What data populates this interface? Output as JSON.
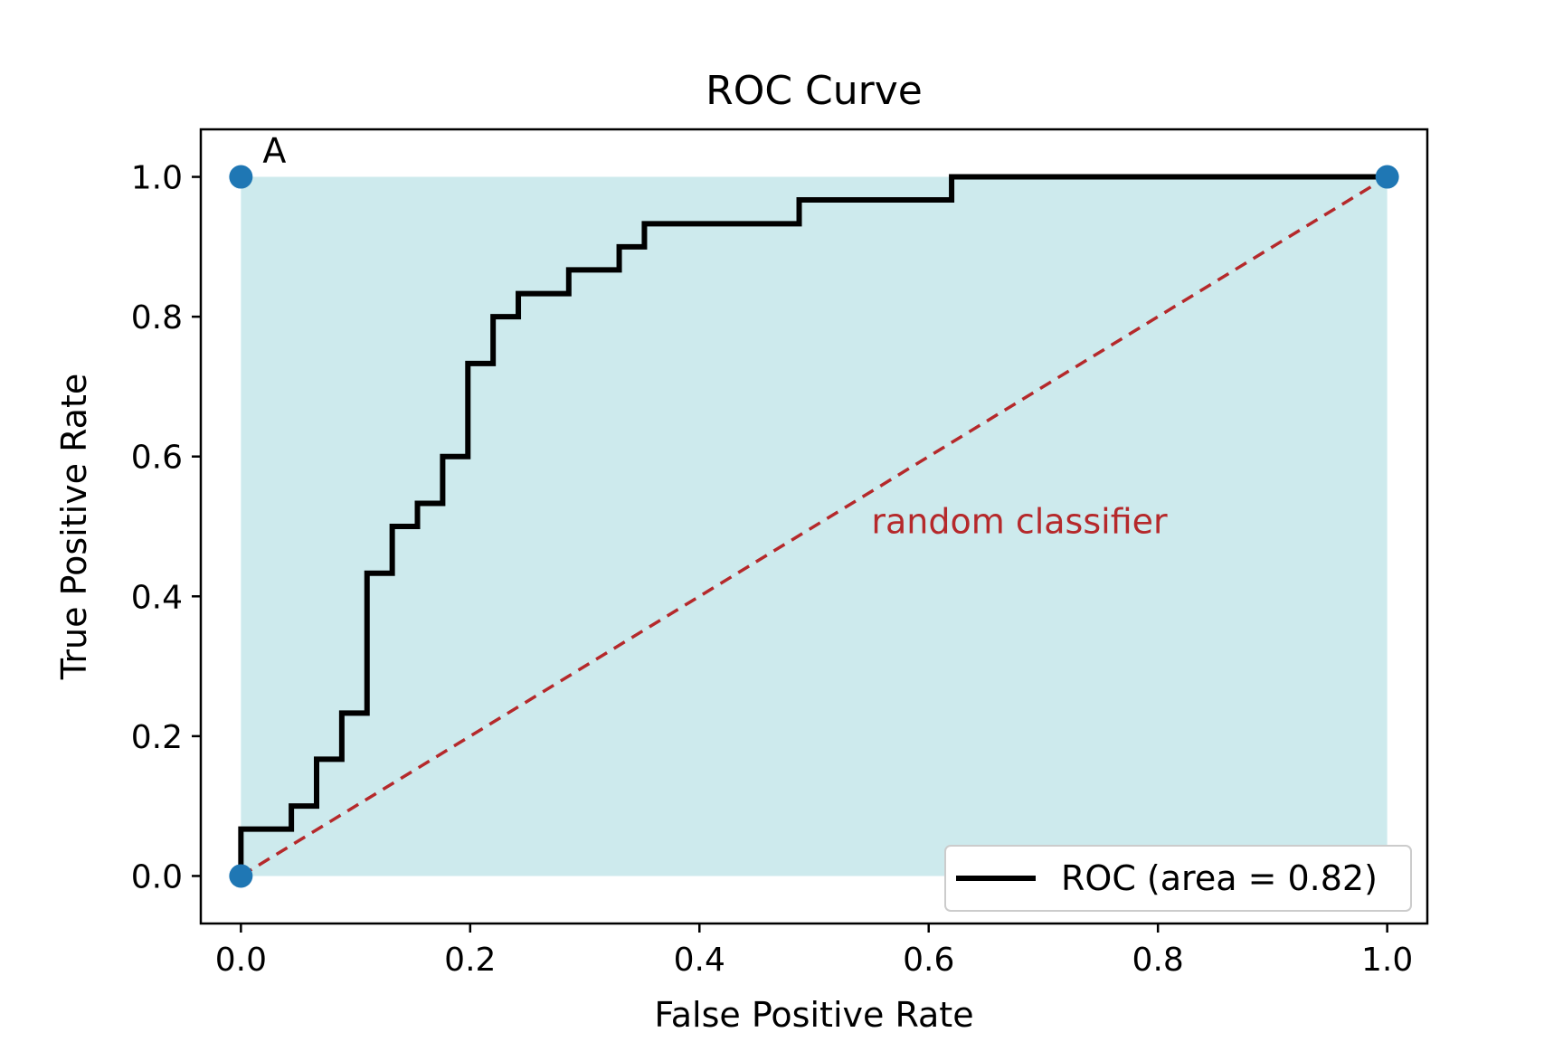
{
  "chart_data": {
    "type": "line",
    "title": "ROC Curve",
    "xlabel": "False Positive Rate",
    "ylabel": "True Positive Rate",
    "xlim": [
      -0.035,
      1.035
    ],
    "ylim": [
      -0.068,
      1.068
    ],
    "grid": false,
    "legend_position": "lower-right",
    "xticks": [
      0.0,
      0.2,
      0.4,
      0.6,
      0.8,
      1.0
    ],
    "yticks": [
      0.0,
      0.2,
      0.4,
      0.6,
      0.8,
      1.0
    ],
    "xtick_labels": [
      "0.0",
      "0.2",
      "0.4",
      "0.6",
      "0.8",
      "1.0"
    ],
    "ytick_labels": [
      "0.0",
      "0.2",
      "0.4",
      "0.6",
      "0.8",
      "1.0"
    ],
    "series": [
      {
        "name": "ROC (area = 0.82)",
        "color": "#000000",
        "x": [
          0.0,
          0.0,
          0.044,
          0.044,
          0.066,
          0.066,
          0.088,
          0.088,
          0.11,
          0.11,
          0.132,
          0.132,
          0.154,
          0.154,
          0.176,
          0.176,
          0.198,
          0.198,
          0.22,
          0.22,
          0.242,
          0.242,
          0.286,
          0.286,
          0.33,
          0.33,
          0.352,
          0.352,
          0.487,
          0.487,
          0.62,
          0.62,
          1.0
        ],
        "y": [
          0.0,
          0.067,
          0.067,
          0.1,
          0.1,
          0.167,
          0.167,
          0.233,
          0.233,
          0.433,
          0.433,
          0.5,
          0.5,
          0.533,
          0.533,
          0.6,
          0.6,
          0.733,
          0.733,
          0.8,
          0.8,
          0.833,
          0.833,
          0.867,
          0.867,
          0.9,
          0.9,
          0.933,
          0.933,
          0.967,
          0.967,
          1.0,
          1.0
        ]
      }
    ],
    "fill_under_curve": {
      "color": "#cdeaed",
      "x": [
        0.0,
        1.0
      ],
      "y_top": 1.0
    },
    "reference_line": {
      "x": [
        0.0,
        1.0
      ],
      "y": [
        0.0,
        1.0
      ],
      "color": "#b5292b",
      "style": "dashed",
      "label": "random classifier",
      "label_x": 0.55,
      "label_y": 0.49
    },
    "points": [
      {
        "x": 0.0,
        "y": 1.0,
        "label": "A"
      },
      {
        "x": 0.0,
        "y": 0.0,
        "label": ""
      },
      {
        "x": 1.0,
        "y": 1.0,
        "label": ""
      }
    ],
    "point_color": "#1f77b4"
  }
}
